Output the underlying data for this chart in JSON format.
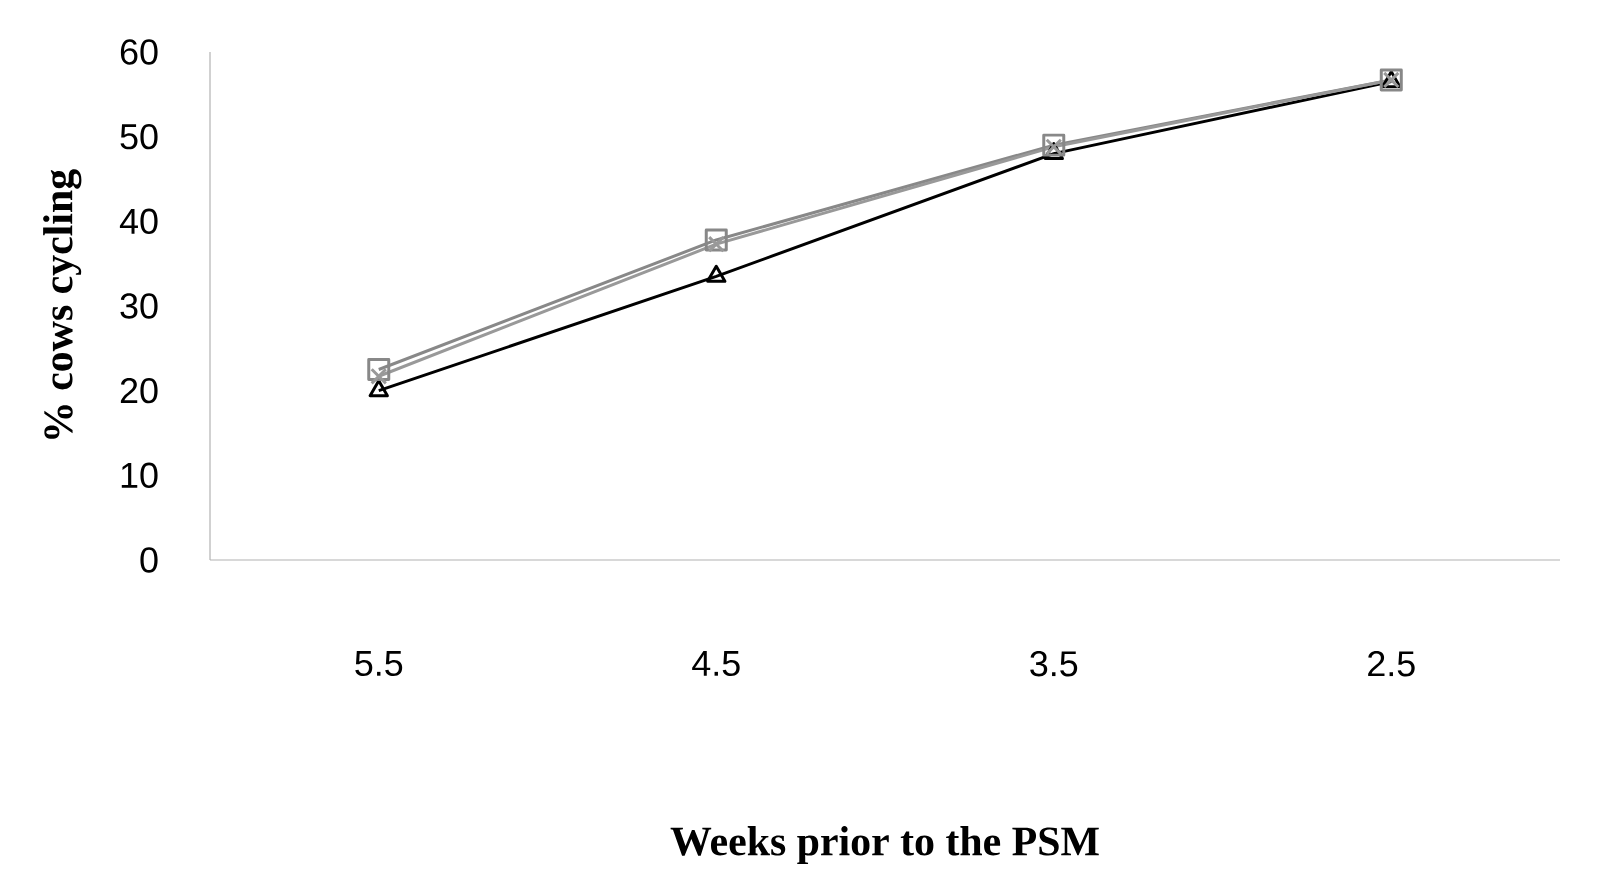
{
  "chart_data": {
    "type": "line",
    "xlabel": "Weeks prior to the PSM",
    "ylabel": "% cows cycling",
    "categories": [
      "5.5",
      "4.5",
      "3.5",
      "2.5"
    ],
    "series": [
      {
        "color": "#000000",
        "marker": "triangle",
        "values": [
          20,
          33.5,
          48,
          56.5
        ]
      },
      {
        "color": "#888888",
        "marker": "square",
        "values": [
          22.5,
          37.8,
          49,
          56.7
        ]
      },
      {
        "color": "#999999",
        "marker": "cross",
        "values": [
          21.7,
          37.3,
          48.8,
          56.7
        ]
      }
    ],
    "ylim": [
      0,
      60
    ],
    "yticks": [
      0,
      10,
      20,
      30,
      40,
      50,
      60
    ],
    "grid": false,
    "line_style": "solid"
  }
}
